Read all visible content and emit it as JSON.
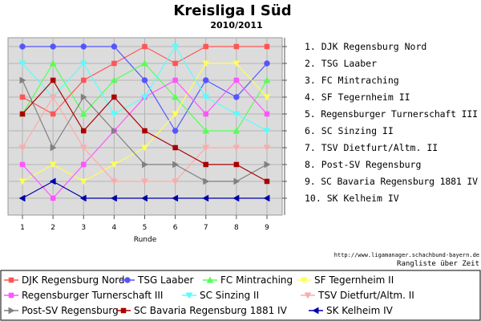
{
  "chart_data": {
    "type": "line",
    "title": "Kreisliga I Süd",
    "subtitle": "2010/2011",
    "xlabel": "Runde",
    "ylabel": "",
    "x": [
      1,
      2,
      3,
      4,
      5,
      6,
      7,
      8,
      9
    ],
    "ylim": [
      1,
      10
    ],
    "y_inverted": true,
    "grid": true,
    "legend": "bottom",
    "rank_labels": [
      "1. DJK Regensburg Nord",
      "2. TSG Laaber",
      "3. FC Mintraching",
      "4. SF Tegernheim II",
      "5. Regensburger Turnerschaft III",
      "6. SC Sinzing II",
      "7. TSV Dietfurt/Altm. II",
      "8. Post-SV Regensburg",
      "9. SC Bavaria Regensburg 1881 IV",
      "10. SK Kelheim IV"
    ],
    "source_url": "http://www.ligamanager.schachbund-bayern.de",
    "footer_caption": "Rangliste über Zeit",
    "series": [
      {
        "name": "DJK Regensburg Nord",
        "color": "#ff5555",
        "marker": "square",
        "values": [
          4,
          5,
          3,
          2,
          1,
          2,
          1,
          1,
          1
        ]
      },
      {
        "name": "TSG Laaber",
        "color": "#5555ff",
        "marker": "circle",
        "values": [
          1,
          1,
          1,
          1,
          3,
          6,
          3,
          4,
          2
        ]
      },
      {
        "name": "FC Mintraching",
        "color": "#55ff55",
        "marker": "triangle-up",
        "values": [
          5,
          2,
          5,
          3,
          2,
          4,
          6,
          6,
          3
        ]
      },
      {
        "name": "SF Tegernheim II",
        "color": "#ffff55",
        "marker": "triangle-down",
        "values": [
          9,
          8,
          9,
          8,
          7,
          5,
          2,
          2,
          4
        ]
      },
      {
        "name": "Regensburger Turnerschaft III",
        "color": "#ff55ff",
        "marker": "square",
        "values": [
          8,
          10,
          8,
          6,
          4,
          3,
          5,
          3,
          5
        ]
      },
      {
        "name": "SC Sinzing II",
        "color": "#55ffff",
        "marker": "triangle-down",
        "values": [
          2,
          4,
          2,
          5,
          4,
          1,
          4,
          5,
          6
        ]
      },
      {
        "name": "TSV Dietfurt/Altm. II",
        "color": "#ffaaaa",
        "marker": "triangle-down",
        "values": [
          7,
          4,
          7,
          9,
          9,
          9,
          7,
          7,
          7
        ]
      },
      {
        "name": "Post-SV Regensburg",
        "color": "#808080",
        "marker": "triangle-right",
        "values": [
          3,
          7,
          4,
          6,
          8,
          8,
          9,
          9,
          8
        ]
      },
      {
        "name": "SC Bavaria Regensburg 1881 IV",
        "color": "#aa0000",
        "marker": "square",
        "values": [
          5,
          3,
          6,
          4,
          6,
          7,
          8,
          8,
          9
        ]
      },
      {
        "name": "SK Kelheim IV",
        "color": "#0000aa",
        "marker": "triangle-left",
        "values": [
          10,
          9,
          10,
          10,
          10,
          10,
          10,
          10,
          10
        ]
      }
    ]
  }
}
